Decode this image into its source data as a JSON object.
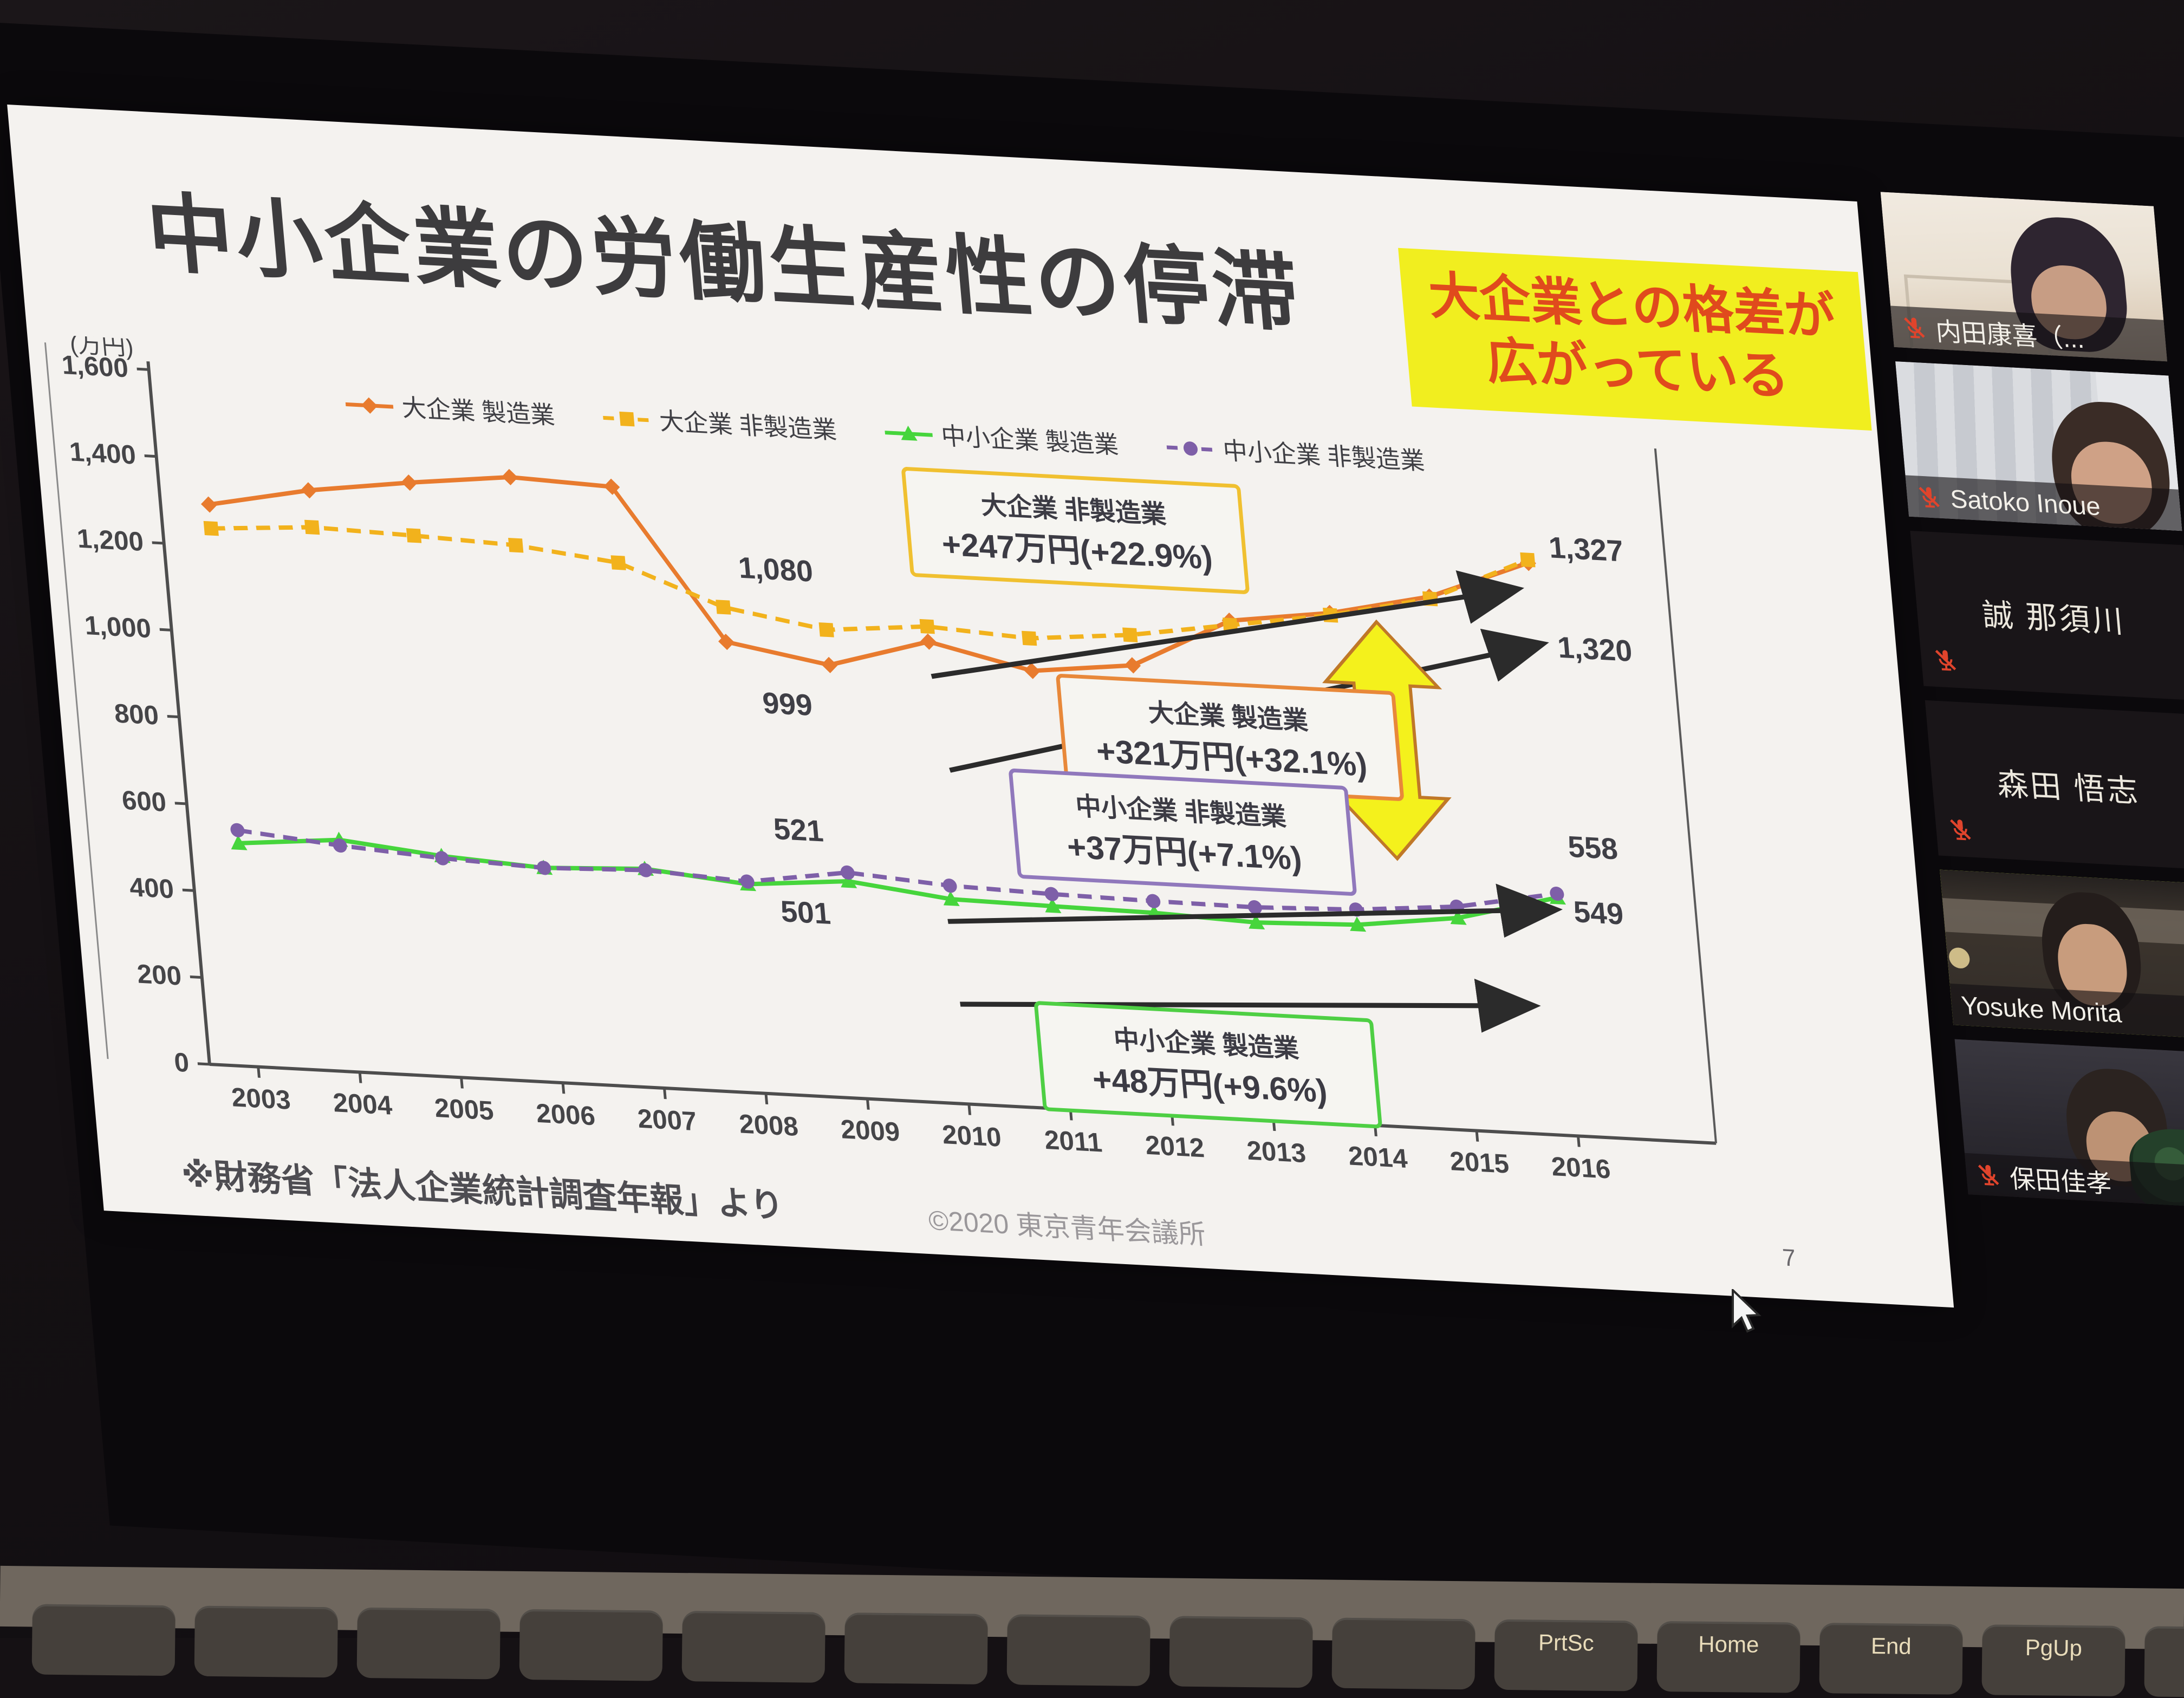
{
  "slide": {
    "title": "中小企業の労働生産性の停滞",
    "callout_line1": "大企業との格差が",
    "callout_line2": "広がっている",
    "source": "※財務省「法人企業統計調査年報」より",
    "copyright": "©2020 東京青年会議所",
    "page_number": "7",
    "callout_bg": "#f1ee1f",
    "callout_text_color": "#e04a1d"
  },
  "chart_data": {
    "type": "line",
    "unit_label": "(万円)",
    "x": [
      "2003",
      "2004",
      "2005",
      "2006",
      "2007",
      "2008",
      "2009",
      "2010",
      "2011",
      "2012",
      "2013",
      "2014",
      "2015",
      "2016"
    ],
    "ylim": [
      0,
      1600
    ],
    "yticks": [
      "0",
      "200",
      "400",
      "600",
      "800",
      "1,000",
      "1,200",
      "1,400",
      "1,600"
    ],
    "legend_position": "top",
    "grid": false,
    "series": [
      {
        "name": "大企業 製造業",
        "color": "#e87b2e",
        "dash": "solid",
        "marker": "diamond",
        "values": [
          1295,
          1340,
          1370,
          1395,
          1385,
          1040,
          999,
          1065,
          1010,
          1035,
          1150,
          1180,
          1230,
          1320
        ]
      },
      {
        "name": "大企業 非製造業",
        "color": "#f2b21c",
        "dash": "dashed",
        "marker": "square",
        "values": [
          1240,
          1255,
          1248,
          1238,
          1210,
          1120,
          1080,
          1100,
          1085,
          1105,
          1140,
          1175,
          1225,
          1327
        ]
      },
      {
        "name": "中小企業 製造業",
        "color": "#46d53c",
        "dash": "solid",
        "marker": "triangle",
        "values": [
          515,
          535,
          510,
          495,
          505,
          482,
          501,
          472,
          468,
          465,
          455,
          462,
          490,
          549
        ]
      },
      {
        "name": "中小企業 非製造業",
        "color": "#7e5fa8",
        "dash": "dashed",
        "marker": "circle",
        "values": [
          545,
          522,
          505,
          495,
          502,
          488,
          521,
          503,
          496,
          492,
          490,
          497,
          516,
          558
        ]
      }
    ],
    "point_labels": [
      {
        "text": "1,080",
        "year": 2008.55,
        "value": 1190
      },
      {
        "text": "999",
        "year": 2008.55,
        "value": 880
      },
      {
        "text": "521",
        "year": 2008.55,
        "value": 590
      },
      {
        "text": "501",
        "year": 2008.55,
        "value": 400
      },
      {
        "text": "1,327",
        "year": 2016.22,
        "value": 1335
      },
      {
        "text": "1,320",
        "year": 2016.22,
        "value": 1105
      },
      {
        "text": "558",
        "year": 2016.15,
        "value": 645
      },
      {
        "text": "549",
        "year": 2016.15,
        "value": 495
      }
    ],
    "arrows": [
      {
        "x1": 2010.0,
        "y1": 985,
        "x2": 2015.8,
        "y2": 1255
      },
      {
        "x1": 2010.1,
        "y1": 770,
        "x2": 2016.0,
        "y2": 1130
      },
      {
        "x1": 2009.95,
        "y1": 420,
        "x2": 2015.9,
        "y2": 520
      },
      {
        "x1": 2010.0,
        "y1": 230,
        "x2": 2015.6,
        "y2": 295
      }
    ],
    "gap_arrow": {
      "year": 2014.45,
      "from": 620,
      "to": 1165,
      "fill": "#f4f11c",
      "stroke": "#c07828"
    },
    "boxes": [
      {
        "line1": "大企業 非製造業",
        "line2": "+247万円(+22.9%)",
        "color": "#f0c030",
        "year": 2011.55,
        "value": 1340
      },
      {
        "line1": "大企業 製造業",
        "line2": "+321万円(+32.1%)",
        "color": "#e8883a",
        "year": 2012.9,
        "value": 880
      },
      {
        "line1": "中小企業 非製造業",
        "line2": "+37万円(+7.1%)",
        "color": "#9078bc",
        "year": 2012.35,
        "value": 655
      },
      {
        "line1": "中小企業 製造業",
        "line2": "+48万円(+9.6%)",
        "color": "#4ecf44",
        "year": 2012.4,
        "value": 120
      }
    ]
  },
  "participants": [
    {
      "name": "内田康喜（...",
      "muted": true,
      "has_video": true,
      "video_style": "room",
      "active": false
    },
    {
      "name": "Satoko Inoue",
      "muted": true,
      "has_video": true,
      "video_style": "curtain",
      "active": false
    },
    {
      "name": "誠 那須川",
      "muted": true,
      "has_video": false,
      "video_style": "none",
      "active": false
    },
    {
      "name": "森田 悟志",
      "muted": true,
      "has_video": false,
      "video_style": "none",
      "active": false
    },
    {
      "name": "Yosuke Morita",
      "muted": false,
      "has_video": true,
      "video_style": "dark",
      "active": true
    },
    {
      "name": "保田佳孝",
      "muted": true,
      "has_video": true,
      "video_style": "dark2",
      "active": false
    }
  ],
  "keyboard": {
    "keys": [
      "",
      "",
      "",
      "",
      "",
      "",
      "",
      "",
      "",
      "PrtSc",
      "Home",
      "End",
      "PgUp",
      ""
    ]
  },
  "colors": {
    "slide_bg": "#f4f2ef",
    "screen_bg": "#0b090c",
    "muted_mic_red": "#e0442c",
    "active_border": "#c4de49"
  }
}
